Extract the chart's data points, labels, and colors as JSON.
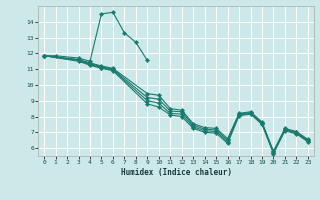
{
  "xlabel": "Humidex (Indice chaleur)",
  "bg_color": "#cce8e8",
  "grid_color": "#ffffff",
  "line_color": "#1a7a6e",
  "marker_color": "#1a7a6e",
  "line1": [
    [
      0,
      11.85
    ],
    [
      1,
      11.85
    ],
    [
      3,
      11.7
    ],
    [
      4,
      11.5
    ],
    [
      5,
      14.5
    ],
    [
      6,
      14.6
    ],
    [
      7,
      13.3
    ],
    [
      8,
      12.7
    ],
    [
      9,
      11.55
    ]
  ],
  "line2": [
    [
      0,
      11.85
    ],
    [
      3,
      11.6
    ],
    [
      4,
      11.4
    ],
    [
      5,
      11.2
    ],
    [
      6,
      11.05
    ],
    [
      9,
      9.45
    ],
    [
      10,
      9.35
    ],
    [
      11,
      8.5
    ],
    [
      12,
      8.4
    ],
    [
      13,
      7.55
    ],
    [
      14,
      7.3
    ],
    [
      15,
      7.25
    ],
    [
      16,
      6.6
    ],
    [
      17,
      8.2
    ],
    [
      18,
      8.3
    ],
    [
      19,
      7.65
    ],
    [
      20,
      5.8
    ],
    [
      21,
      7.25
    ],
    [
      22,
      7.05
    ],
    [
      23,
      6.55
    ]
  ],
  "line3": [
    [
      0,
      11.85
    ],
    [
      3,
      11.6
    ],
    [
      4,
      11.35
    ],
    [
      5,
      11.15
    ],
    [
      6,
      11.0
    ],
    [
      9,
      9.2
    ],
    [
      10,
      9.1
    ],
    [
      11,
      8.35
    ],
    [
      12,
      8.3
    ],
    [
      13,
      7.45
    ],
    [
      14,
      7.2
    ],
    [
      15,
      7.15
    ],
    [
      16,
      6.5
    ],
    [
      17,
      8.15
    ],
    [
      18,
      8.25
    ],
    [
      19,
      7.6
    ],
    [
      20,
      5.75
    ],
    [
      21,
      7.2
    ],
    [
      22,
      7.0
    ],
    [
      23,
      6.5
    ]
  ],
  "line4": [
    [
      0,
      11.85
    ],
    [
      3,
      11.55
    ],
    [
      4,
      11.3
    ],
    [
      5,
      11.1
    ],
    [
      6,
      10.95
    ],
    [
      9,
      9.0
    ],
    [
      10,
      8.85
    ],
    [
      11,
      8.2
    ],
    [
      12,
      8.15
    ],
    [
      13,
      7.35
    ],
    [
      14,
      7.1
    ],
    [
      15,
      7.05
    ],
    [
      16,
      6.4
    ],
    [
      17,
      8.1
    ],
    [
      18,
      8.2
    ],
    [
      19,
      7.55
    ],
    [
      20,
      5.7
    ],
    [
      21,
      7.15
    ],
    [
      22,
      6.95
    ],
    [
      23,
      6.45
    ]
  ],
  "line5": [
    [
      0,
      11.85
    ],
    [
      3,
      11.5
    ],
    [
      4,
      11.25
    ],
    [
      5,
      11.05
    ],
    [
      6,
      10.9
    ],
    [
      9,
      8.8
    ],
    [
      10,
      8.6
    ],
    [
      11,
      8.1
    ],
    [
      12,
      8.0
    ],
    [
      13,
      7.25
    ],
    [
      14,
      7.0
    ],
    [
      15,
      6.95
    ],
    [
      16,
      6.3
    ],
    [
      17,
      8.05
    ],
    [
      18,
      8.15
    ],
    [
      19,
      7.5
    ],
    [
      20,
      5.65
    ],
    [
      21,
      7.1
    ],
    [
      22,
      6.9
    ],
    [
      23,
      6.4
    ]
  ],
  "xlim": [
    -0.5,
    23.5
  ],
  "ylim": [
    5.5,
    15.0
  ],
  "xticks": [
    0,
    1,
    2,
    3,
    4,
    5,
    6,
    7,
    8,
    9,
    10,
    11,
    12,
    13,
    14,
    15,
    16,
    17,
    18,
    19,
    20,
    21,
    22,
    23
  ],
  "yticks": [
    6,
    7,
    8,
    9,
    10,
    11,
    12,
    13,
    14
  ]
}
